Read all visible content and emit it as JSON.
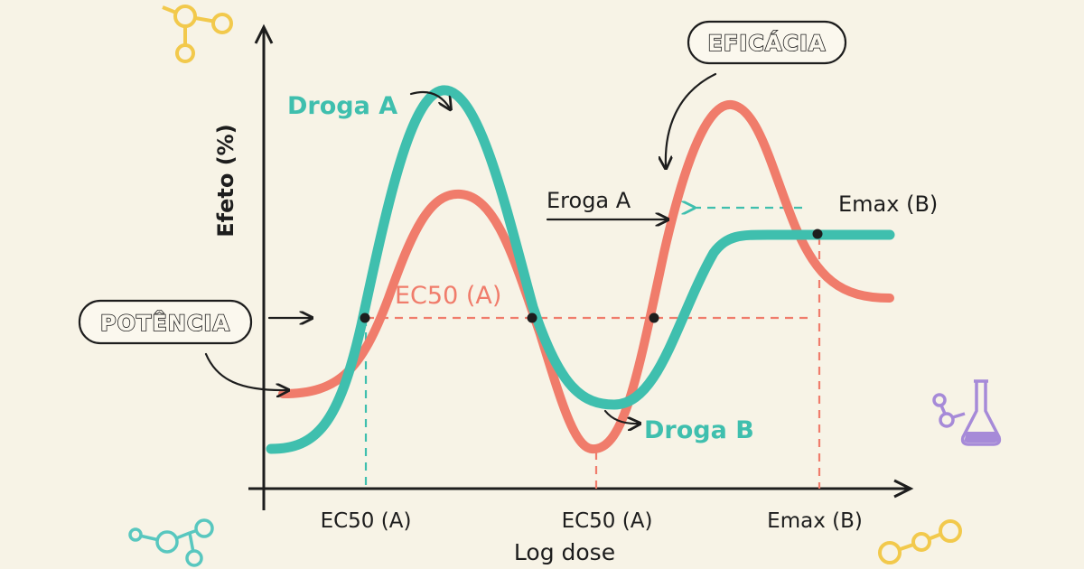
{
  "axes": {
    "y_label": "Efeto (%)",
    "x_label": "Log dose",
    "x_ticks": [
      "EC50 (A)",
      "EC50 (A)",
      "Emax (B)"
    ]
  },
  "labels": {
    "droga_a": "Droga A",
    "droga_b": "Droga B",
    "eroga_a": "Eroga A",
    "ec50_a": "EC50 (A)",
    "emax_b": "Emax (B)"
  },
  "badges": {
    "potencia": "POTÊNCIA",
    "eficacia": "EFICÁCIA"
  },
  "colors": {
    "teal": "#3fbfae",
    "salmon": "#f07c6b",
    "ink": "#1d1d1d",
    "background": "#f7f3e6",
    "molecule_yellow": "#f2c94c",
    "molecule_teal": "#58c7bf",
    "flask_purple": "#a68ad8"
  },
  "icons": [
    "molecule-icon",
    "molecule-icon",
    "molecule-icon",
    "flask-icon"
  ]
}
